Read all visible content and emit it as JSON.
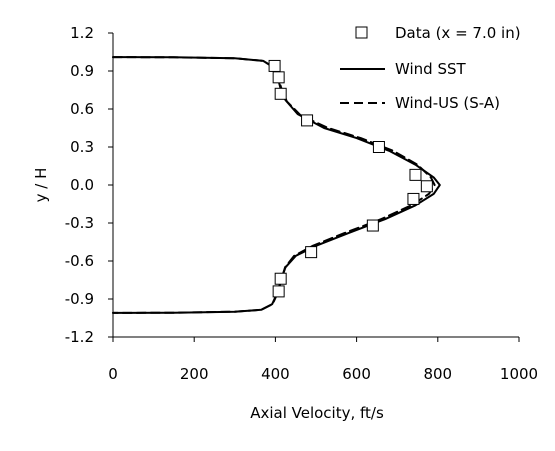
{
  "chart_data": {
    "type": "line",
    "title": "",
    "xlabel": "Axial Velocity, ft/s",
    "ylabel": "y / H",
    "xlim": [
      0,
      1000
    ],
    "ylim": [
      -1.2,
      1.2
    ],
    "xticks": [
      0,
      200,
      400,
      600,
      800,
      1000
    ],
    "xtick_labels": [
      "0",
      "200",
      "400",
      "600",
      "800",
      "1000"
    ],
    "yticks": [
      1.2,
      0.9,
      0.6,
      0.3,
      0.0,
      -0.3,
      -0.6,
      -0.9,
      -1.2
    ],
    "ytick_labels": [
      "1.2",
      "0.9",
      "0.6",
      "0.3",
      "0.0",
      "-0.3",
      "-0.6",
      "-0.9",
      "-1.2"
    ],
    "grid": false,
    "legend_position": "top-right",
    "series": [
      {
        "name": "Data (x = 7.0 in)",
        "style": "markers",
        "marker": "open-square",
        "color": "#000000",
        "points": [
          {
            "x": 398,
            "y": 0.94
          },
          {
            "x": 408,
            "y": 0.85
          },
          {
            "x": 413,
            "y": 0.72
          },
          {
            "x": 478,
            "y": 0.51
          },
          {
            "x": 655,
            "y": 0.3
          },
          {
            "x": 745,
            "y": 0.08
          },
          {
            "x": 773,
            "y": -0.01
          },
          {
            "x": 740,
            "y": -0.11
          },
          {
            "x": 640,
            "y": -0.32
          },
          {
            "x": 488,
            "y": -0.53
          },
          {
            "x": 413,
            "y": -0.74
          },
          {
            "x": 408,
            "y": -0.84
          }
        ]
      },
      {
        "name": "Wind SST",
        "style": "solid",
        "color": "#000000",
        "points": [
          {
            "x": 0,
            "y": 1.01
          },
          {
            "x": 150,
            "y": 1.008
          },
          {
            "x": 300,
            "y": 1.0
          },
          {
            "x": 370,
            "y": 0.98
          },
          {
            "x": 395,
            "y": 0.93
          },
          {
            "x": 405,
            "y": 0.86
          },
          {
            "x": 412,
            "y": 0.77
          },
          {
            "x": 425,
            "y": 0.67
          },
          {
            "x": 455,
            "y": 0.56
          },
          {
            "x": 520,
            "y": 0.45
          },
          {
            "x": 600,
            "y": 0.37
          },
          {
            "x": 680,
            "y": 0.27
          },
          {
            "x": 745,
            "y": 0.16
          },
          {
            "x": 790,
            "y": 0.06
          },
          {
            "x": 805,
            "y": 0.0
          },
          {
            "x": 790,
            "y": -0.07
          },
          {
            "x": 745,
            "y": -0.16
          },
          {
            "x": 670,
            "y": -0.27
          },
          {
            "x": 580,
            "y": -0.38
          },
          {
            "x": 500,
            "y": -0.48
          },
          {
            "x": 450,
            "y": -0.56
          },
          {
            "x": 425,
            "y": -0.65
          },
          {
            "x": 415,
            "y": -0.74
          },
          {
            "x": 405,
            "y": -0.85
          },
          {
            "x": 392,
            "y": -0.94
          },
          {
            "x": 365,
            "y": -0.985
          },
          {
            "x": 300,
            "y": -1.0
          },
          {
            "x": 150,
            "y": -1.008
          },
          {
            "x": 0,
            "y": -1.01
          }
        ]
      },
      {
        "name": "Wind-US (S-A)",
        "style": "dashed",
        "color": "#000000",
        "points": [
          {
            "x": 0,
            "y": 1.01
          },
          {
            "x": 150,
            "y": 1.008
          },
          {
            "x": 300,
            "y": 1.0
          },
          {
            "x": 370,
            "y": 0.98
          },
          {
            "x": 395,
            "y": 0.93
          },
          {
            "x": 406,
            "y": 0.86
          },
          {
            "x": 414,
            "y": 0.77
          },
          {
            "x": 428,
            "y": 0.66
          },
          {
            "x": 462,
            "y": 0.55
          },
          {
            "x": 530,
            "y": 0.45
          },
          {
            "x": 610,
            "y": 0.37
          },
          {
            "x": 690,
            "y": 0.27
          },
          {
            "x": 750,
            "y": 0.16
          },
          {
            "x": 783,
            "y": 0.06
          },
          {
            "x": 792,
            "y": 0.0
          },
          {
            "x": 778,
            "y": -0.07
          },
          {
            "x": 735,
            "y": -0.16
          },
          {
            "x": 660,
            "y": -0.27
          },
          {
            "x": 570,
            "y": -0.38
          },
          {
            "x": 492,
            "y": -0.48
          },
          {
            "x": 446,
            "y": -0.56
          },
          {
            "x": 424,
            "y": -0.65
          },
          {
            "x": 415,
            "y": -0.74
          },
          {
            "x": 406,
            "y": -0.85
          },
          {
            "x": 393,
            "y": -0.94
          },
          {
            "x": 365,
            "y": -0.985
          },
          {
            "x": 300,
            "y": -1.0
          },
          {
            "x": 150,
            "y": -1.008
          },
          {
            "x": 0,
            "y": -1.01
          }
        ]
      }
    ]
  }
}
